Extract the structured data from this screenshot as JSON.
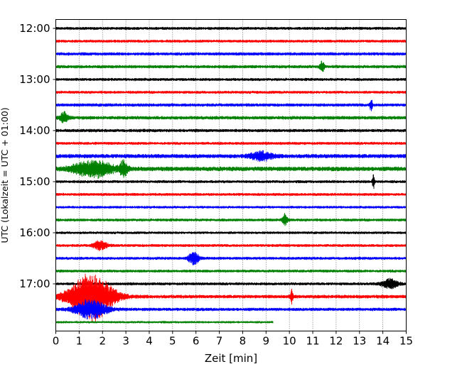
{
  "chart_data": {
    "type": "line",
    "title": "",
    "xlabel": "Zeit  [min]",
    "ylabel": "UTC (Lokalzeit = UTC + 01:00)",
    "xlim": [
      0,
      15
    ],
    "x_ticks": [
      "0",
      "1",
      "2",
      "3",
      "4",
      "5",
      "6",
      "7",
      "8",
      "9",
      "10",
      "11",
      "12",
      "13",
      "14",
      "15"
    ],
    "y_ticks": [
      "12:00",
      "13:00",
      "14:00",
      "15:00",
      "16:00",
      "17:00"
    ],
    "grid_x": true,
    "grid_style": "dotted",
    "trace_colors": [
      "#000000",
      "#ff0000",
      "#0000ff",
      "#008000"
    ],
    "series": [
      {
        "start": "12:00",
        "end_min": 15,
        "amplitude": 1.0,
        "events": []
      },
      {
        "start": "12:15",
        "end_min": 15,
        "amplitude": 1.0,
        "events": []
      },
      {
        "start": "12:30",
        "end_min": 15,
        "amplitude": 1.1,
        "events": []
      },
      {
        "start": "12:45",
        "end_min": 15,
        "amplitude": 1.1,
        "events": [
          {
            "t": 11.4,
            "amp": 2.6,
            "dur": 0.15
          }
        ]
      },
      {
        "start": "13:00",
        "end_min": 15,
        "amplitude": 1.0,
        "events": []
      },
      {
        "start": "13:15",
        "end_min": 15,
        "amplitude": 1.0,
        "events": []
      },
      {
        "start": "13:30",
        "end_min": 15,
        "amplitude": 1.1,
        "events": [
          {
            "t": 13.5,
            "amp": 2.4,
            "dur": 0.1
          }
        ]
      },
      {
        "start": "13:45",
        "end_min": 15,
        "amplitude": 1.2,
        "events": [
          {
            "t": 0.35,
            "amp": 2.0,
            "dur": 0.3
          }
        ]
      },
      {
        "start": "14:00",
        "end_min": 15,
        "amplitude": 1.1,
        "events": []
      },
      {
        "start": "14:15",
        "end_min": 15,
        "amplitude": 1.0,
        "events": []
      },
      {
        "start": "14:30",
        "end_min": 15,
        "amplitude": 1.4,
        "events": [
          {
            "t": 8.8,
            "amp": 1.6,
            "dur": 0.8
          }
        ]
      },
      {
        "start": "14:45",
        "end_min": 15,
        "amplitude": 1.5,
        "events": [
          {
            "t": 1.6,
            "amp": 3.2,
            "dur": 1.5
          },
          {
            "t": 2.9,
            "amp": 2.8,
            "dur": 0.3
          }
        ]
      },
      {
        "start": "15:00",
        "end_min": 15,
        "amplitude": 1.0,
        "events": [
          {
            "t": 13.6,
            "amp": 2.6,
            "dur": 0.1
          }
        ]
      },
      {
        "start": "15:15",
        "end_min": 15,
        "amplitude": 1.0,
        "events": []
      },
      {
        "start": "15:30",
        "end_min": 15,
        "amplitude": 0.9,
        "events": []
      },
      {
        "start": "15:45",
        "end_min": 15,
        "amplitude": 1.0,
        "events": [
          {
            "t": 9.8,
            "amp": 2.2,
            "dur": 0.2
          }
        ]
      },
      {
        "start": "16:00",
        "end_min": 15,
        "amplitude": 0.9,
        "events": []
      },
      {
        "start": "16:15",
        "end_min": 15,
        "amplitude": 1.0,
        "events": [
          {
            "t": 1.9,
            "amp": 1.8,
            "dur": 0.5
          }
        ]
      },
      {
        "start": "16:30",
        "end_min": 15,
        "amplitude": 1.0,
        "events": [
          {
            "t": 5.9,
            "amp": 2.4,
            "dur": 0.4
          }
        ]
      },
      {
        "start": "16:45",
        "end_min": 15,
        "amplitude": 1.0,
        "events": []
      },
      {
        "start": "17:00",
        "end_min": 15,
        "amplitude": 1.0,
        "events": [
          {
            "t": 14.3,
            "amp": 2.0,
            "dur": 0.6
          }
        ]
      },
      {
        "start": "17:15",
        "end_min": 15,
        "amplitude": 1.2,
        "events": [
          {
            "t": 1.5,
            "amp": 10.0,
            "dur": 1.6
          },
          {
            "t": 10.1,
            "amp": 2.6,
            "dur": 0.1
          }
        ]
      },
      {
        "start": "17:30",
        "end_min": 15,
        "amplitude": 1.1,
        "events": [
          {
            "t": 1.5,
            "amp": 3.6,
            "dur": 1.2
          }
        ]
      },
      {
        "start": "17:45",
        "end_min": 9.3,
        "amplitude": 0.8,
        "events": []
      }
    ]
  }
}
